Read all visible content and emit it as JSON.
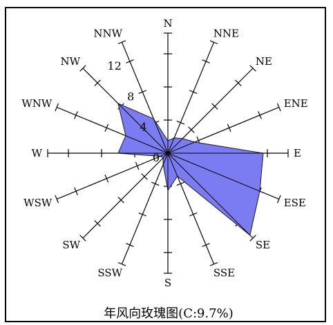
{
  "chart_data": {
    "type": "wind-rose",
    "title": "年风向玫瑰图(C:9.7%)",
    "directions": [
      "N",
      "NNE",
      "NE",
      "ENE",
      "E",
      "ESE",
      "SE",
      "SSE",
      "S",
      "SSW",
      "SW",
      "WSW",
      "W",
      "WNW",
      "NW",
      "NNW"
    ],
    "values": [
      1.5,
      2.0,
      2.5,
      3.5,
      11.5,
      12.0,
      14.0,
      3.0,
      4.5,
      1.5,
      0.8,
      1.0,
      6.0,
      5.5,
      8.5,
      4.5
    ],
    "radial_ticks": [
      0,
      4,
      8,
      12
    ],
    "rmax": 14,
    "axis_labels": {
      "N": "N",
      "NNE": "NNE",
      "NE": "NE",
      "ENE": "ENE",
      "E": "E",
      "ESE": "ESE",
      "SE": "SE",
      "SSE": "SSE",
      "S": "S",
      "SSW": "SSW",
      "SW": "SW",
      "WSW": "WSW",
      "W": "W",
      "WNW": "WNW",
      "NW": "NW",
      "NNW": "NNW"
    },
    "colors": {
      "fill": "#7b7bf2",
      "stroke": "#1a1a1a",
      "axis": "#000000"
    }
  }
}
